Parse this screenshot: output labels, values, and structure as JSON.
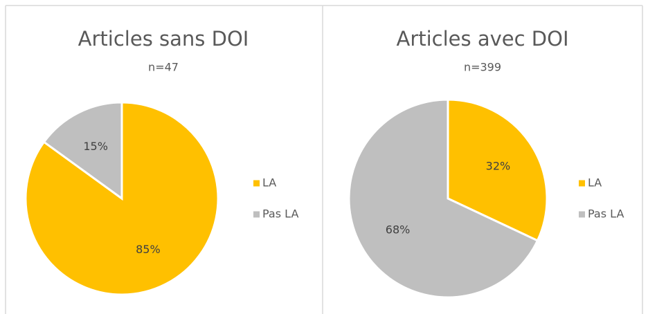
{
  "chart_data": [
    {
      "type": "pie",
      "title": "Articles sans DOI",
      "subtitle": "n=47",
      "categories": [
        "LA",
        "Pas LA"
      ],
      "values": [
        85,
        15
      ],
      "value_labels": [
        "85%",
        "15%"
      ],
      "colors": [
        "#FFC000",
        "#BFBFBF"
      ],
      "legend": "right"
    },
    {
      "type": "pie",
      "title": "Articles avec DOI",
      "subtitle": "n=399",
      "categories": [
        "LA",
        "Pas LA"
      ],
      "values": [
        32,
        68
      ],
      "value_labels": [
        "32%",
        "68%"
      ],
      "colors": [
        "#FFC000",
        "#BFBFBF"
      ],
      "legend": "right"
    }
  ]
}
